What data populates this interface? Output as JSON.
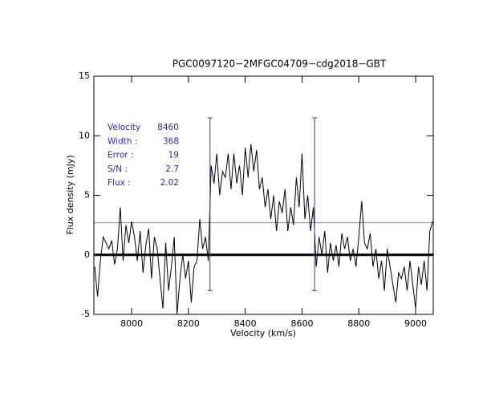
{
  "chart_data": {
    "type": "line",
    "title": "PGC0097120−2MFGC04709−cdg2018−GBT",
    "xlabel": "Velocity (km/s)",
    "ylabel": "Flux density (mJy)",
    "xlim": [
      7867,
      9062
    ],
    "ylim": [
      -5,
      15
    ],
    "xticks": [
      8000,
      8200,
      8400,
      8600,
      8800,
      9000
    ],
    "yticks": [
      -5,
      0,
      5,
      10,
      15
    ],
    "x": [
      7870,
      7880,
      7890,
      7900,
      7910,
      7920,
      7930,
      7940,
      7950,
      7960,
      7970,
      7980,
      7990,
      8000,
      8010,
      8020,
      8030,
      8040,
      8050,
      8060,
      8070,
      8080,
      8090,
      8100,
      8110,
      8120,
      8130,
      8140,
      8150,
      8160,
      8170,
      8180,
      8190,
      8200,
      8210,
      8220,
      8230,
      8240,
      8250,
      8260,
      8270,
      8280,
      8290,
      8300,
      8310,
      8320,
      8330,
      8340,
      8350,
      8360,
      8370,
      8380,
      8390,
      8400,
      8410,
      8420,
      8430,
      8440,
      8450,
      8460,
      8470,
      8480,
      8490,
      8500,
      8510,
      8520,
      8530,
      8540,
      8550,
      8560,
      8570,
      8580,
      8590,
      8600,
      8610,
      8620,
      8630,
      8640,
      8650,
      8660,
      8670,
      8680,
      8690,
      8700,
      8710,
      8720,
      8730,
      8740,
      8750,
      8760,
      8770,
      8780,
      8790,
      8800,
      8810,
      8820,
      8830,
      8840,
      8850,
      8860,
      8870,
      8880,
      8890,
      8900,
      8910,
      8920,
      8930,
      8940,
      8950,
      8960,
      8970,
      8980,
      8990,
      9000,
      9010,
      9020,
      9030,
      9040,
      9050,
      9060
    ],
    "series": [
      {
        "color": "#000000",
        "values": [
          -1,
          -3.5,
          -0.5,
          1.5,
          1,
          0.5,
          1.2,
          -0.8,
          0.5,
          4,
          -0.5,
          2.5,
          1,
          2.8,
          1.5,
          -0.5,
          2,
          -1.5,
          0.8,
          2.2,
          -2,
          1.5,
          0.5,
          -2,
          -4.5,
          1,
          -3,
          -1,
          1.5,
          -5,
          -2,
          0,
          -2,
          -0.5,
          -4,
          -1,
          -0.5,
          3,
          0.5,
          1.5,
          -0.5,
          7.5,
          6,
          8.5,
          5,
          7,
          6.5,
          8.5,
          5.5,
          8.5,
          6,
          7.5,
          5,
          9,
          6.5,
          9.3,
          7,
          8.8,
          5.5,
          6.5,
          4,
          5.5,
          3,
          5,
          2,
          4.5,
          3.5,
          5.5,
          2,
          4,
          2.5,
          6.5,
          4,
          8.5,
          3,
          5,
          2,
          4,
          -1,
          1.5,
          0,
          2,
          -1.5,
          1,
          -0.5,
          0.8,
          -1,
          1.8,
          0.5,
          1.5,
          -0.5,
          0.5,
          -1,
          1.5,
          4.5,
          1,
          0.5,
          1.8,
          -1,
          0.5,
          -2,
          -0.5,
          -3,
          0.5,
          -1,
          -2.5,
          -4,
          -1.5,
          -2,
          -1,
          -3,
          -0.5,
          -2.5,
          -4.5,
          -1,
          -2.5,
          -0.5,
          -3,
          2,
          2.8
        ]
      }
    ],
    "baseline": {
      "value": 0,
      "color": "#000000"
    },
    "threshold": {
      "value": 2.7,
      "color": "#22dd22"
    },
    "edges": {
      "x": [
        8276,
        8644
      ],
      "ylim": [
        -3,
        11.5
      ],
      "color": "#5a2aa0"
    },
    "annotations": [
      {
        "label": "Velocity",
        "value": 8460
      },
      {
        "label": "Width :",
        "value": 368
      },
      {
        "label": "Error :",
        "value": 19
      },
      {
        "label": "S/N :",
        "value": 2.7
      },
      {
        "label": "Flux :",
        "value": 2.02
      }
    ]
  }
}
